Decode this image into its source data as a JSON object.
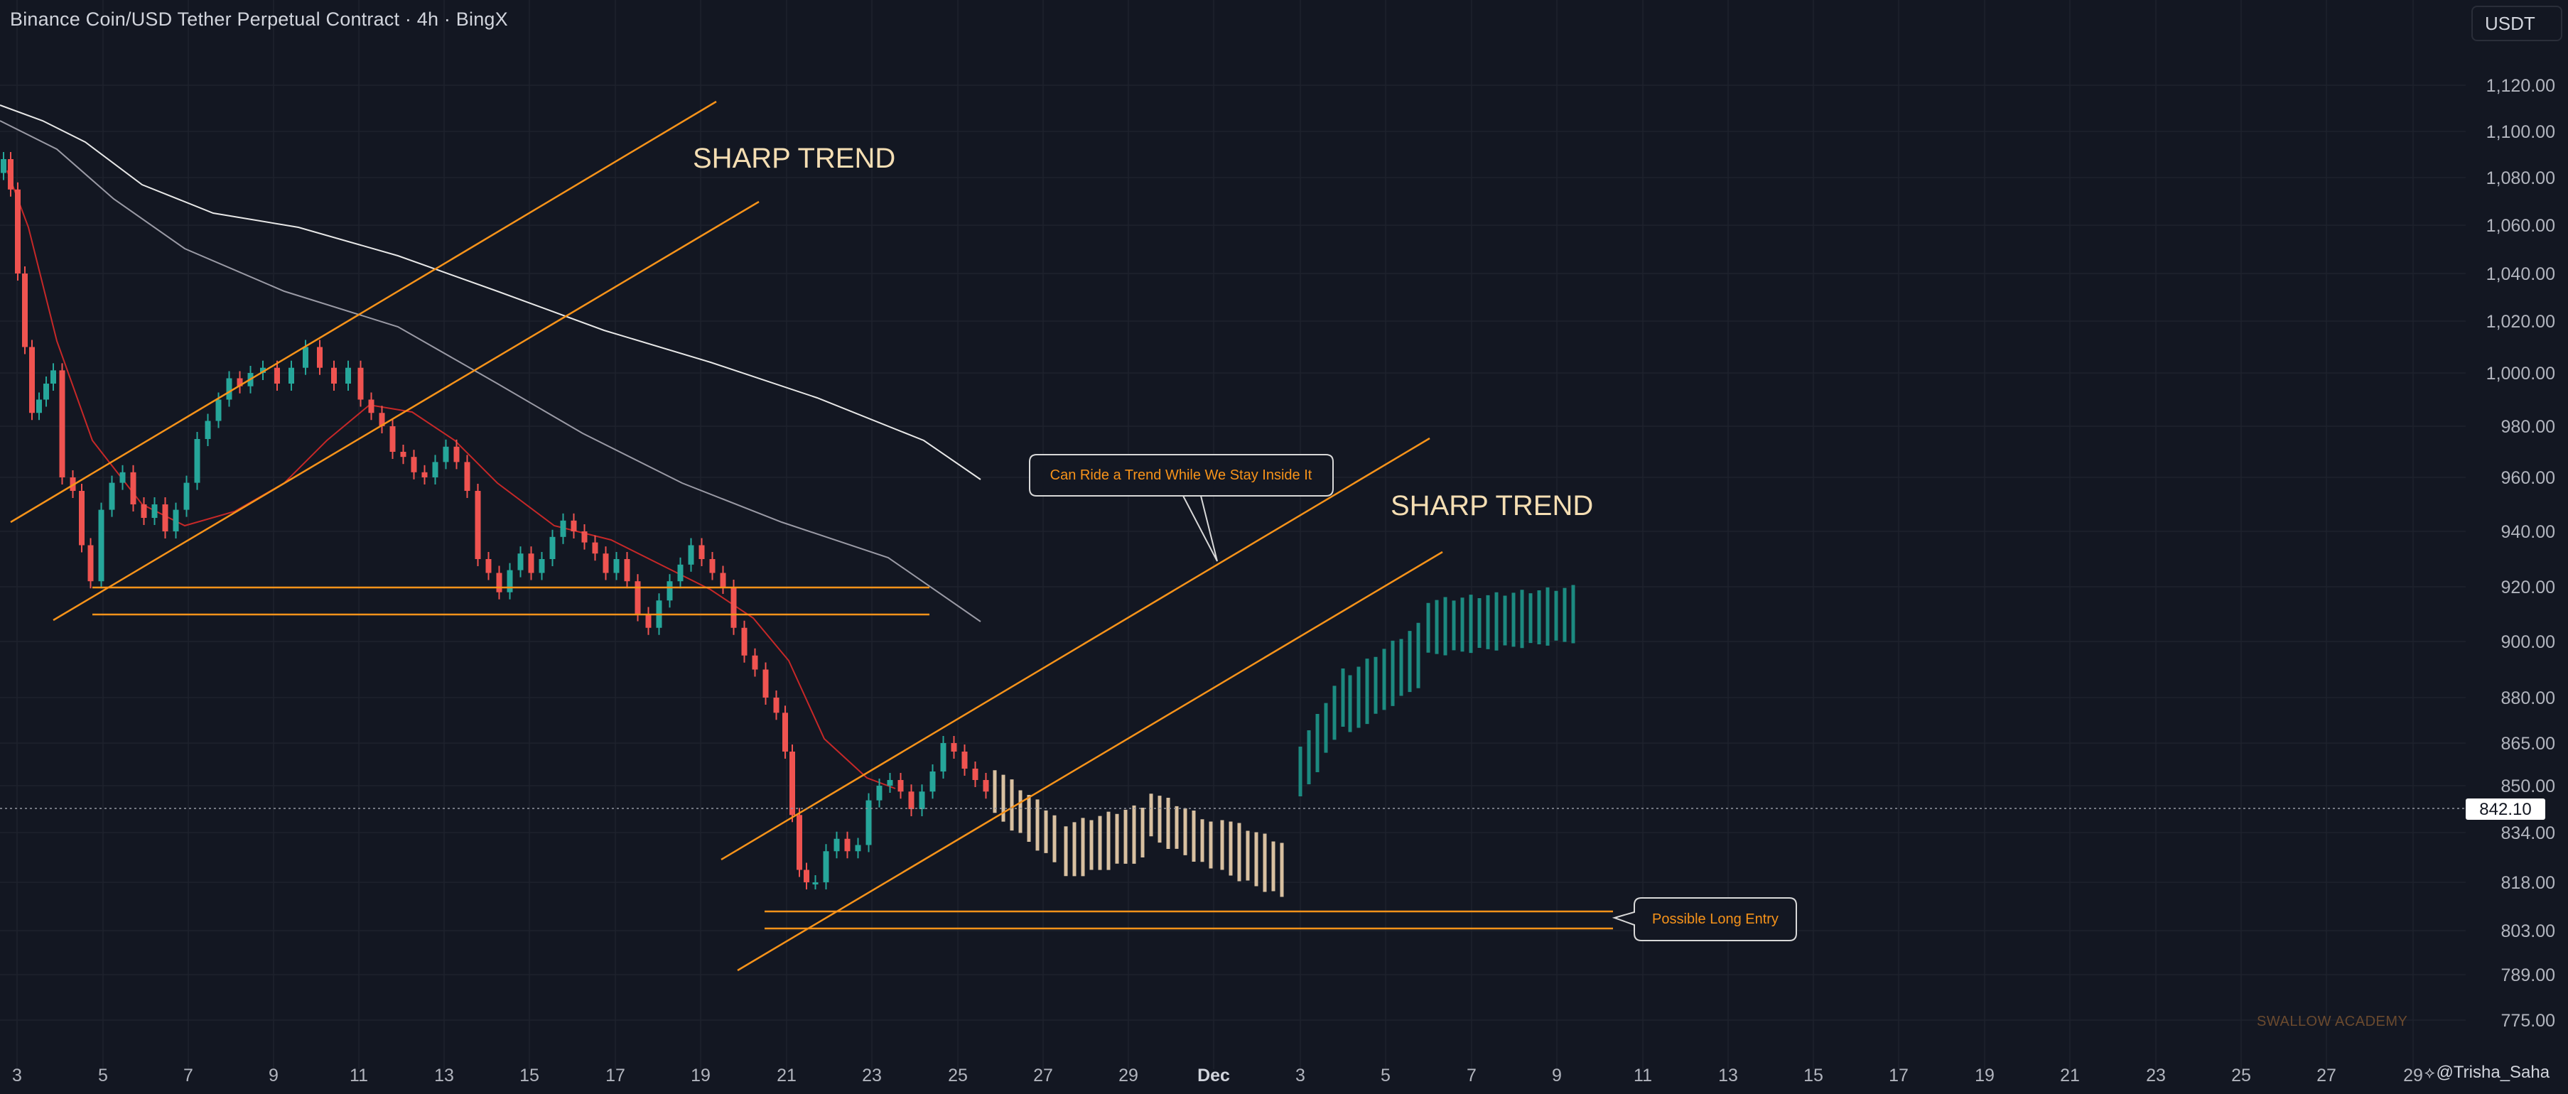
{
  "header": {
    "symbol_title": "Binance Coin/USD Tether Perpetual Contract · 4h · BingX",
    "currency_button": "USDT"
  },
  "price_axis": {
    "ticks": [
      "1,120.00",
      "1,100.00",
      "1,080.00",
      "1,060.00",
      "1,040.00",
      "1,020.00",
      "1,000.00",
      "980.00",
      "960.00",
      "940.00",
      "920.00",
      "900.00",
      "880.00",
      "865.00",
      "850.00",
      "834.00",
      "818.00",
      "803.00",
      "789.00",
      "775.00"
    ],
    "tick_values": [
      1120,
      1100,
      1080,
      1060,
      1040,
      1020,
      1000,
      980,
      960,
      940,
      920,
      900,
      880,
      865,
      850,
      834,
      818,
      803,
      789,
      775
    ],
    "current_price_label": "842.10",
    "current_price": 842.1
  },
  "time_axis": {
    "labels": [
      "3",
      "5",
      "7",
      "9",
      "11",
      "13",
      "15",
      "17",
      "19",
      "21",
      "23",
      "25",
      "27",
      "29",
      "Dec",
      "3",
      "5",
      "7",
      "9",
      "11",
      "13",
      "15",
      "17",
      "19",
      "21",
      "23",
      "25",
      "27",
      "29"
    ]
  },
  "annotations": {
    "sharp_trend_1": "SHARP TREND",
    "sharp_trend_2": "SHARP TREND",
    "callout_trend": "Can Ride a Trend While We Stay Inside It",
    "callout_entry": "Possible Long Entry"
  },
  "watermark": "SWALLOW ACADEMY",
  "author": "@Trisha_Saha",
  "colors": {
    "background": "#131722",
    "up": "#26a69a",
    "down": "#ef5350",
    "trendline": "#f7931a",
    "projection": "#d8c0a0",
    "projection_up": "#1c8a80",
    "ma_red": "#c62828",
    "ma_white": "#e0e0e0",
    "label_text": "#f5deb3"
  }
}
